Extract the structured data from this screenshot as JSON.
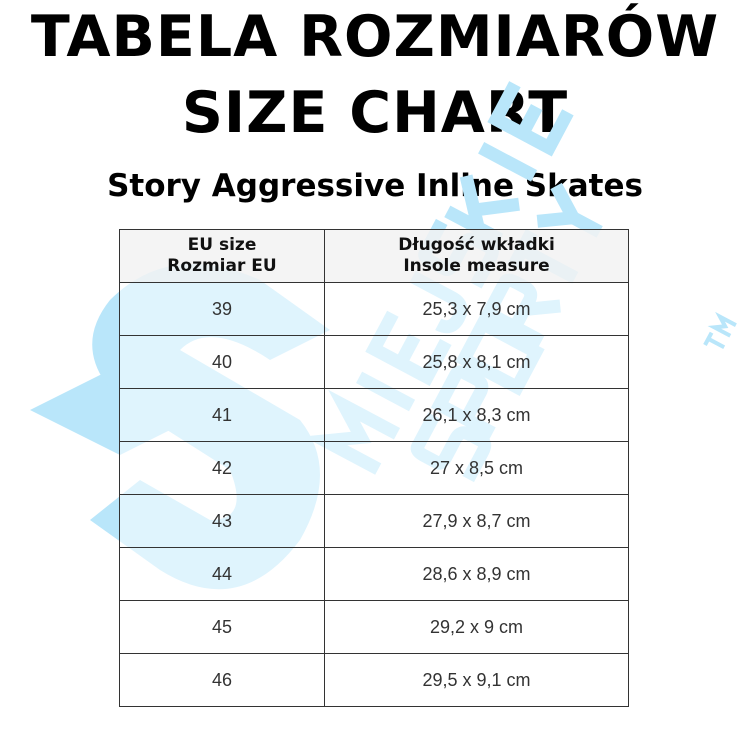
{
  "title_pl": "TABELA ROZMIARÓW",
  "title_en": "SIZE CHART",
  "subtitle": "Story Aggressive Inline Skates",
  "watermark": {
    "text": "MIEJSKIE SPORTY",
    "tm": "TM",
    "color": "#b9e6fa"
  },
  "table": {
    "headers": [
      {
        "line1": "EU size",
        "line2": "Rozmiar EU"
      },
      {
        "line1": "Długość wkładki",
        "line2": "Insole measure"
      }
    ],
    "rows": [
      {
        "size": "39",
        "insole": "25,3 x 7,9 cm"
      },
      {
        "size": "40",
        "insole": "25,8 x 8,1 cm"
      },
      {
        "size": "41",
        "insole": "26,1 x 8,3 cm"
      },
      {
        "size": "42",
        "insole": "27 x 8,5 cm"
      },
      {
        "size": "43",
        "insole": "27,9 x 8,7 cm"
      },
      {
        "size": "44",
        "insole": "28,6 x 8,9 cm"
      },
      {
        "size": "45",
        "insole": "29,2 x 9 cm"
      },
      {
        "size": "46",
        "insole": "29,5 x 9,1 cm"
      }
    ]
  }
}
